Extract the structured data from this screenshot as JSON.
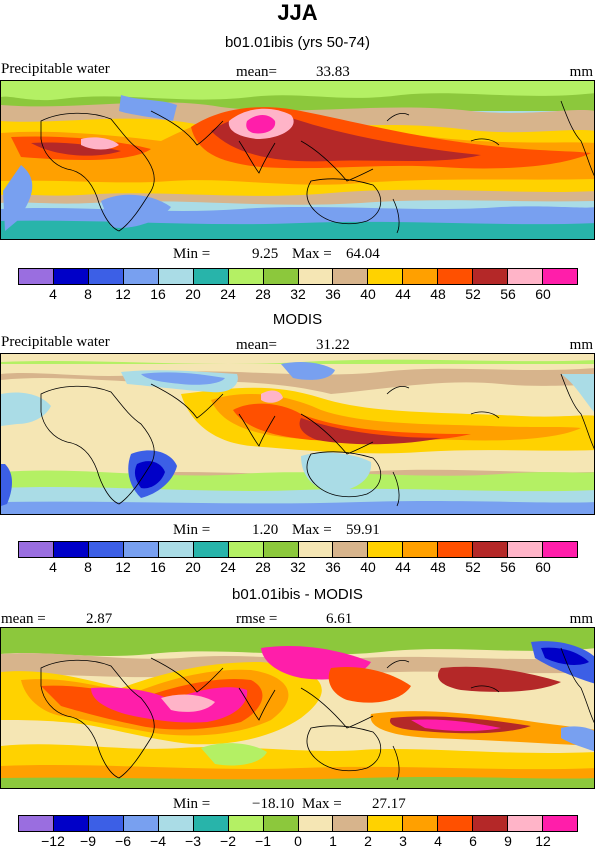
{
  "title": "JJA",
  "units": "mm",
  "variable": "Precipitable water",
  "colors": [
    "#9a6ee0",
    "#0000c8",
    "#3c5fe6",
    "#78a0f0",
    "#aadce6",
    "#28b4aa",
    "#b4f064",
    "#8cc83c",
    "#f5e6b4",
    "#d7b48c",
    "#ffd200",
    "#ffa000",
    "#ff5000",
    "#b42828",
    "#ffb4c8",
    "#ff1eaa"
  ],
  "panels": [
    {
      "title": "b01.01ibis (yrs 50-74)",
      "left_label": "Precipitable water",
      "stat_label": "mean=",
      "stat_value": "33.83",
      "right_label": "mm",
      "min_label": "Min =",
      "min_value": "9.25",
      "max_label": "Max =",
      "max_value": "64.04",
      "ticks": [
        "4",
        "8",
        "12",
        "16",
        "20",
        "24",
        "28",
        "32",
        "36",
        "40",
        "44",
        "48",
        "52",
        "56",
        "60"
      ]
    },
    {
      "title": "MODIS",
      "left_label": "Precipitable water",
      "stat_label": "mean=",
      "stat_value": "31.22",
      "right_label": "mm",
      "min_label": "Min =",
      "min_value": "1.20",
      "max_label": "Max =",
      "max_value": "59.91",
      "ticks": [
        "4",
        "8",
        "12",
        "16",
        "20",
        "24",
        "28",
        "32",
        "36",
        "40",
        "44",
        "48",
        "52",
        "56",
        "60"
      ]
    },
    {
      "title": "b01.01ibis - MODIS",
      "left_label": "mean =",
      "left_value": "2.87",
      "stat_label": "rmse =",
      "stat_value": "6.61",
      "right_label": "mm",
      "min_label": "Min =",
      "min_value": "−18.10",
      "max_label": "Max =",
      "max_value": "27.17",
      "ticks": [
        "−12",
        "−9",
        "−6",
        "−4",
        "−3",
        "−2",
        "−1",
        "0",
        "1",
        "2",
        "3",
        "4",
        "6",
        "9",
        "12"
      ]
    }
  ],
  "chart_data": [
    {
      "type": "heatmap",
      "title": "b01.01ibis (yrs 50-74)",
      "variable": "Precipitable water",
      "units": "mm",
      "mean": 33.83,
      "min": 9.25,
      "max": 64.04,
      "contour_levels": [
        4,
        8,
        12,
        16,
        20,
        24,
        28,
        32,
        36,
        40,
        44,
        48,
        52,
        56,
        60
      ]
    },
    {
      "type": "heatmap",
      "title": "MODIS",
      "variable": "Precipitable water",
      "units": "mm",
      "mean": 31.22,
      "min": 1.2,
      "max": 59.91,
      "contour_levels": [
        4,
        8,
        12,
        16,
        20,
        24,
        28,
        32,
        36,
        40,
        44,
        48,
        52,
        56,
        60
      ]
    },
    {
      "type": "heatmap",
      "title": "b01.01ibis - MODIS",
      "units": "mm",
      "mean": 2.87,
      "rmse": 6.61,
      "min": -18.1,
      "max": 27.17,
      "contour_levels": [
        -12,
        -9,
        -6,
        -4,
        -3,
        -2,
        -1,
        0,
        1,
        2,
        3,
        4,
        6,
        9,
        12
      ]
    }
  ]
}
